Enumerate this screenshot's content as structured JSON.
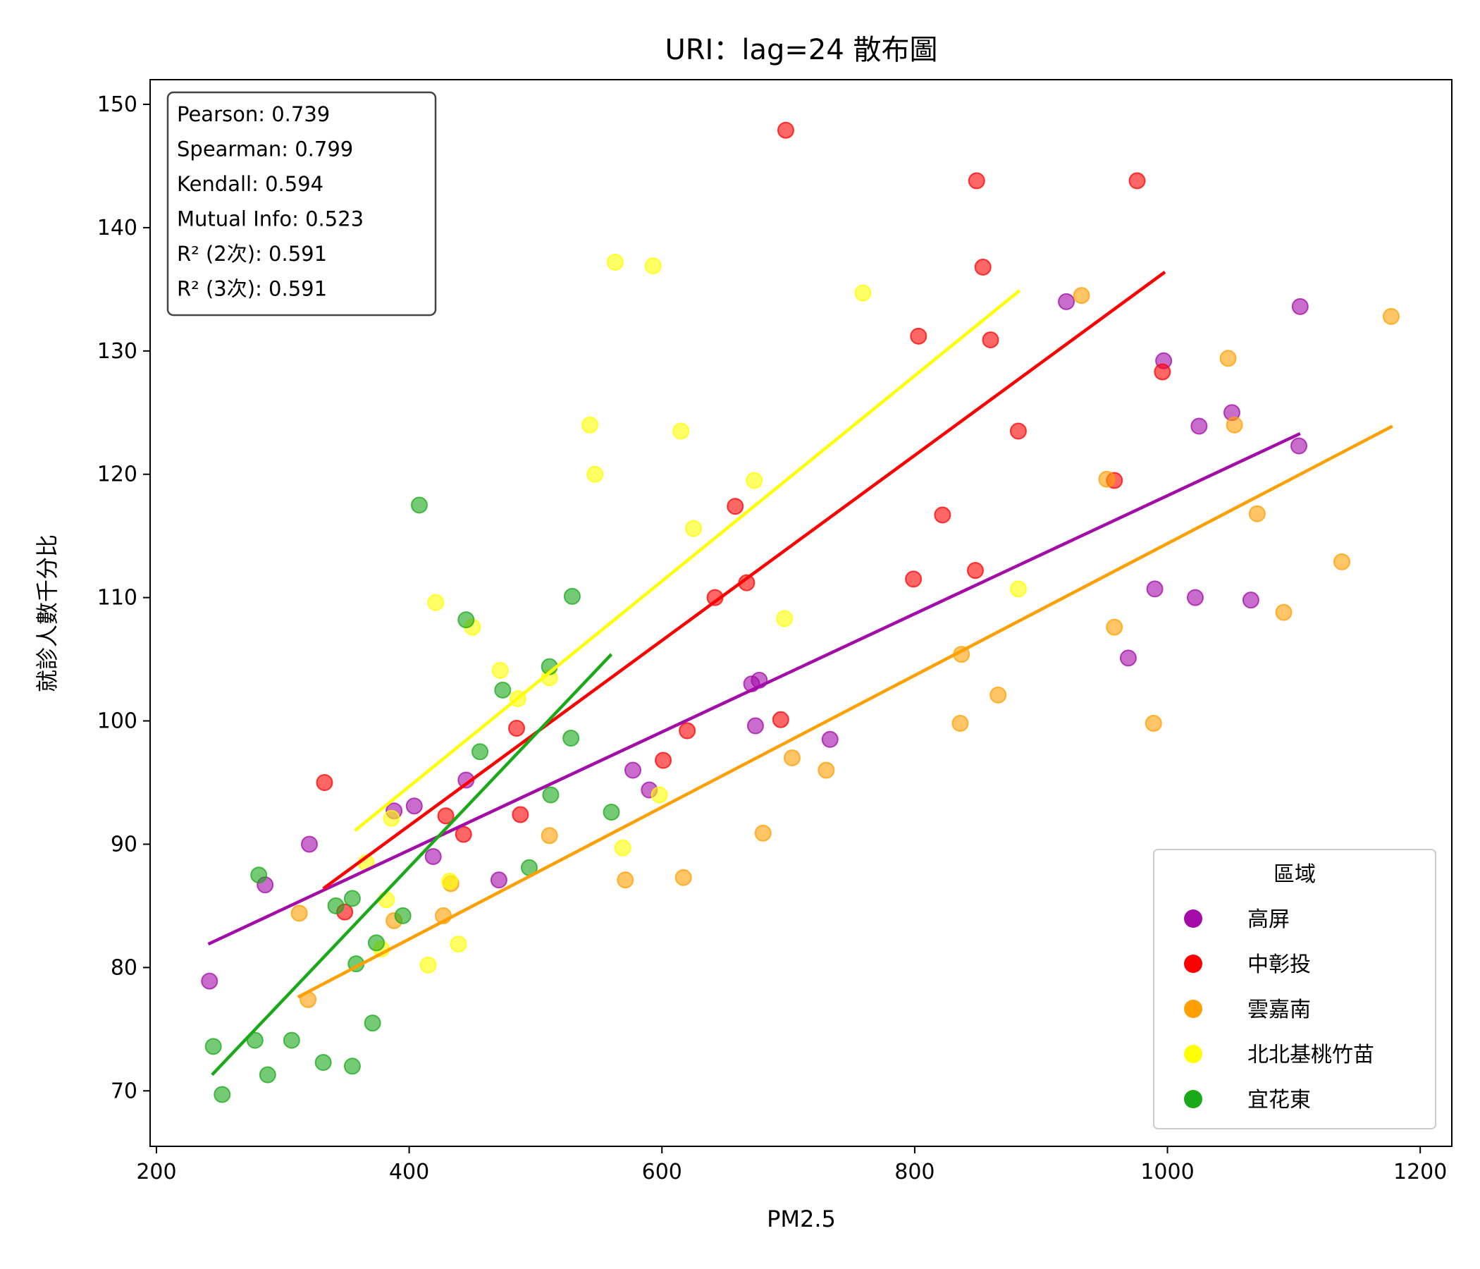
{
  "chart_data": {
    "type": "scatter",
    "title": "URI：lag=24 散布圖",
    "xlabel": "PM2.5",
    "ylabel": "就診人數千分比",
    "xlim": [
      195,
      1225
    ],
    "ylim": [
      65.5,
      152
    ],
    "xticks": [
      200,
      400,
      600,
      800,
      1000,
      1200
    ],
    "yticks": [
      70,
      80,
      90,
      100,
      110,
      120,
      130,
      140,
      150
    ],
    "grid": false,
    "legend": {
      "title": "區域",
      "placement": "lower-right"
    },
    "stats": [
      "Pearson: 0.739",
      "Spearman: 0.799",
      "Kendall: 0.594",
      "Mutual Info: 0.523",
      "R² (2次): 0.591",
      "R² (3次): 0.591"
    ],
    "series": [
      {
        "name": "高屏",
        "color": "#a30ca8",
        "trend": [
          [
            241,
            81.9
          ],
          [
            1105,
            123.3
          ]
        ],
        "points": [
          [
            242,
            78.9
          ],
          [
            286,
            86.7
          ],
          [
            321,
            90
          ],
          [
            388,
            92.7
          ],
          [
            404,
            93.1
          ],
          [
            419,
            89
          ],
          [
            445,
            95.2
          ],
          [
            471,
            87.1
          ],
          [
            577,
            96
          ],
          [
            590,
            94.4
          ],
          [
            671,
            103
          ],
          [
            674,
            99.6
          ],
          [
            677,
            103.3
          ],
          [
            733,
            98.5
          ],
          [
            920,
            134
          ],
          [
            969,
            105.1
          ],
          [
            990,
            110.7
          ],
          [
            997,
            129.2
          ],
          [
            1022,
            110
          ],
          [
            1025,
            123.9
          ],
          [
            1051,
            125
          ],
          [
            1066,
            109.8
          ],
          [
            1104,
            122.3
          ],
          [
            1105,
            133.6
          ]
        ]
      },
      {
        "name": "中彰投",
        "color": "#ff0000",
        "trend": [
          [
            332,
            86.4
          ],
          [
            998,
            136.4
          ]
        ],
        "points": [
          [
            333,
            95
          ],
          [
            349,
            84.5
          ],
          [
            429,
            92.3
          ],
          [
            443,
            90.8
          ],
          [
            485,
            99.4
          ],
          [
            488,
            92.4
          ],
          [
            601,
            96.8
          ],
          [
            620,
            99.2
          ],
          [
            642,
            110
          ],
          [
            658,
            117.4
          ],
          [
            667,
            111.2
          ],
          [
            694,
            100.1
          ],
          [
            698,
            147.9
          ],
          [
            799,
            111.5
          ],
          [
            803,
            131.2
          ],
          [
            822,
            116.7
          ],
          [
            848,
            112.2
          ],
          [
            849,
            143.8
          ],
          [
            854,
            136.8
          ],
          [
            860,
            130.9
          ],
          [
            882,
            123.5
          ],
          [
            958,
            119.5
          ],
          [
            976,
            143.8
          ],
          [
            996,
            128.3
          ]
        ]
      },
      {
        "name": "雲嘉南",
        "color": "#ff9f00",
        "trend": [
          [
            312,
            77.6
          ],
          [
            1178,
            123.9
          ]
        ],
        "points": [
          [
            313,
            84.4
          ],
          [
            320,
            77.4
          ],
          [
            388,
            83.8
          ],
          [
            427,
            84.2
          ],
          [
            433,
            86.8
          ],
          [
            511,
            90.7
          ],
          [
            571,
            87.1
          ],
          [
            617,
            87.3
          ],
          [
            680,
            90.9
          ],
          [
            703,
            97
          ],
          [
            730,
            96
          ],
          [
            836,
            99.8
          ],
          [
            837,
            105.4
          ],
          [
            866,
            102.1
          ],
          [
            932,
            134.5
          ],
          [
            952,
            119.6
          ],
          [
            958,
            107.6
          ],
          [
            989,
            99.8
          ],
          [
            1048,
            129.4
          ],
          [
            1053,
            124
          ],
          [
            1071,
            116.8
          ],
          [
            1092,
            108.8
          ],
          [
            1138,
            112.9
          ],
          [
            1177,
            132.8
          ]
        ]
      },
      {
        "name": "北北基桃竹苗",
        "color": "#ffff00",
        "trend": [
          [
            357,
            91.1
          ],
          [
            883,
            134.9
          ]
        ],
        "points": [
          [
            366,
            88.5
          ],
          [
            378,
            81.5
          ],
          [
            382,
            85.5
          ],
          [
            386,
            92.1
          ],
          [
            415,
            80.2
          ],
          [
            421,
            109.6
          ],
          [
            432,
            87
          ],
          [
            439,
            81.9
          ],
          [
            450,
            107.6
          ],
          [
            472,
            104.1
          ],
          [
            486,
            101.8
          ],
          [
            511,
            103.5
          ],
          [
            543,
            124
          ],
          [
            547,
            120
          ],
          [
            563,
            137.2
          ],
          [
            569,
            89.7
          ],
          [
            593,
            136.9
          ],
          [
            598,
            94
          ],
          [
            615,
            123.5
          ],
          [
            625,
            115.6
          ],
          [
            673,
            119.5
          ],
          [
            697,
            108.3
          ],
          [
            759,
            134.7
          ],
          [
            882,
            110.7
          ]
        ]
      },
      {
        "name": "宜花東",
        "color": "#19a919",
        "trend": [
          [
            244,
            71.3
          ],
          [
            560,
            105.4
          ]
        ],
        "points": [
          [
            245,
            73.6
          ],
          [
            252,
            69.7
          ],
          [
            278,
            74.1
          ],
          [
            281,
            87.5
          ],
          [
            288,
            71.3
          ],
          [
            307,
            74.1
          ],
          [
            332,
            72.3
          ],
          [
            342,
            85
          ],
          [
            355,
            72
          ],
          [
            355,
            85.6
          ],
          [
            358,
            80.3
          ],
          [
            371,
            75.5
          ],
          [
            374,
            82
          ],
          [
            395,
            84.2
          ],
          [
            408,
            117.5
          ],
          [
            445,
            108.2
          ],
          [
            456,
            97.5
          ],
          [
            474,
            102.5
          ],
          [
            495,
            88.1
          ],
          [
            512,
            94
          ],
          [
            511,
            104.4
          ],
          [
            528,
            98.6
          ],
          [
            529,
            110.1
          ],
          [
            560,
            92.6
          ]
        ]
      }
    ]
  }
}
